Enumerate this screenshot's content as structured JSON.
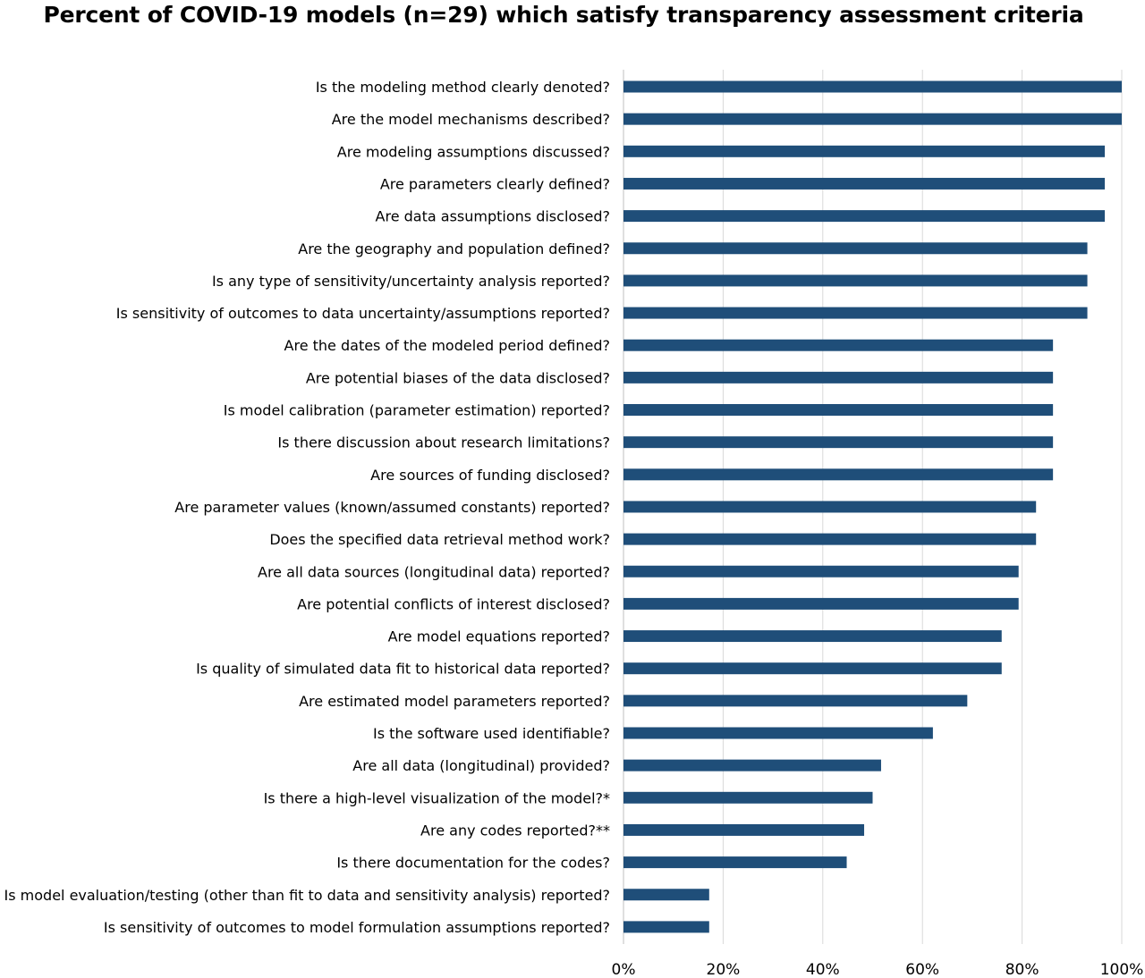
{
  "chart_data": {
    "type": "bar",
    "orientation": "horizontal",
    "title": "Percent of COVID-19 models (n=29) which satisfy transparency assessment criteria",
    "xlabel": "",
    "ylabel": "",
    "xlim": [
      0,
      100
    ],
    "x_ticks": [
      "0%",
      "20%",
      "40%",
      "60%",
      "80%",
      "100%"
    ],
    "grid": "vertical",
    "legend": "none",
    "bar_color": "#1F4E79",
    "grid_color": "#D9D9D9",
    "categories": [
      "Is the modeling method clearly denoted?",
      "Are the model mechanisms described?",
      "Are modeling assumptions discussed?",
      "Are parameters clearly defined?",
      "Are data assumptions disclosed?",
      "Are the geography and population defined?",
      "Is any type of sensitivity/uncertainty analysis reported?",
      "Is sensitivity of outcomes to data uncertainty/assumptions reported?",
      "Are the dates of the modeled period defined?",
      "Are potential biases of the data disclosed?",
      "Is model calibration (parameter estimation) reported?",
      "Is there discussion about research limitations?",
      "Are sources of funding disclosed?",
      "Are parameter values (known/assumed constants) reported?",
      "Does the specified data retrieval method work?",
      "Are all data sources (longitudinal data) reported?",
      "Are potential conflicts of interest disclosed?",
      "Are model equations reported?",
      "Is quality of simulated data fit to historical data reported?",
      "Are estimated model parameters reported?",
      "Is the software used identifiable?",
      "Are all data (longitudinal) provided?",
      "Is there a high-level visualization of the model?*",
      "Are any codes reported?**",
      "Is there documentation for the codes?",
      "Is model evaluation/testing (other than fit to data and sensitivity analysis) reported?",
      "Is sensitivity of outcomes to model formulation assumptions reported?"
    ],
    "values": [
      100,
      100,
      96.6,
      96.6,
      96.6,
      93.1,
      93.1,
      93.1,
      86.2,
      86.2,
      86.2,
      86.2,
      86.2,
      82.8,
      82.8,
      79.3,
      79.3,
      75.9,
      75.9,
      69.0,
      62.1,
      51.7,
      50.0,
      48.3,
      44.8,
      17.2,
      17.2
    ]
  }
}
